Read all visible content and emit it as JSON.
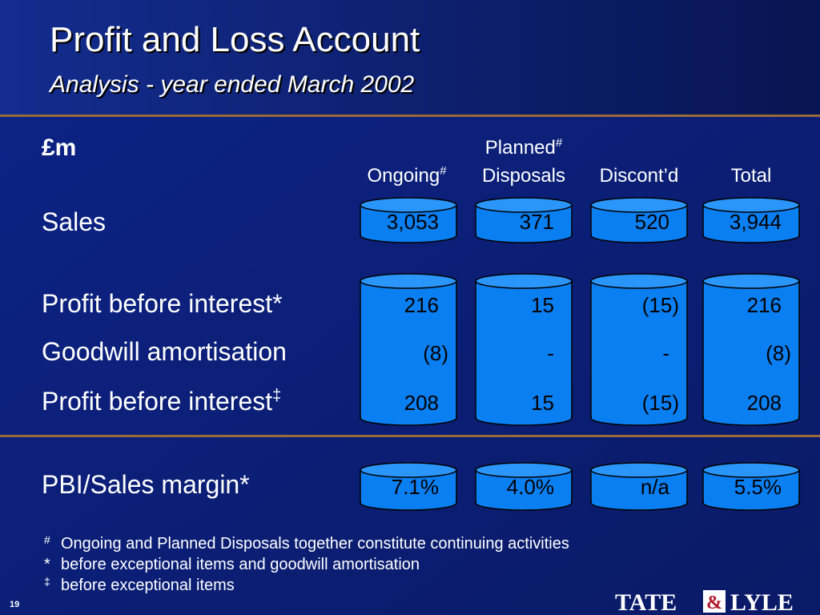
{
  "header": {
    "title": "Profit and Loss Account",
    "subtitle": "Analysis - year ended March 2002"
  },
  "table": {
    "unit": "£m",
    "columns": [
      {
        "label": "Ongoing",
        "sup": "#"
      },
      {
        "label_top": "Planned",
        "sup": "#",
        "label": "Disposals"
      },
      {
        "label": "Discont’d"
      },
      {
        "label": "Total"
      }
    ],
    "sales": {
      "label": "Sales",
      "values": [
        "3,053",
        "371",
        "520",
        "3,944"
      ]
    },
    "profit_rows": [
      {
        "label": "Profit before interest*",
        "values": [
          "216",
          "15",
          "(15)",
          "216"
        ]
      },
      {
        "label": "Goodwill amortisation",
        "values": [
          "(8)",
          "-",
          "-",
          "(8)"
        ]
      },
      {
        "label": "Profit before interest",
        "sup": "‡",
        "values": [
          "208",
          "15",
          "(15)",
          "208"
        ]
      }
    ],
    "margin": {
      "label": "PBI/Sales margin*",
      "values": [
        "7.1%",
        "4.0%",
        "n/a",
        "5.5%"
      ]
    }
  },
  "footnotes": [
    {
      "mark": "#",
      "text": "Ongoing and Planned Disposals together constitute continuing activities"
    },
    {
      "mark": "*",
      "text": "before exceptional items and goodwill amortisation"
    },
    {
      "mark": "‡",
      "text": "before exceptional items"
    }
  ],
  "page_number": "19",
  "logo": {
    "left": "TATE",
    "amp": "&",
    "right": "LYLE"
  }
}
